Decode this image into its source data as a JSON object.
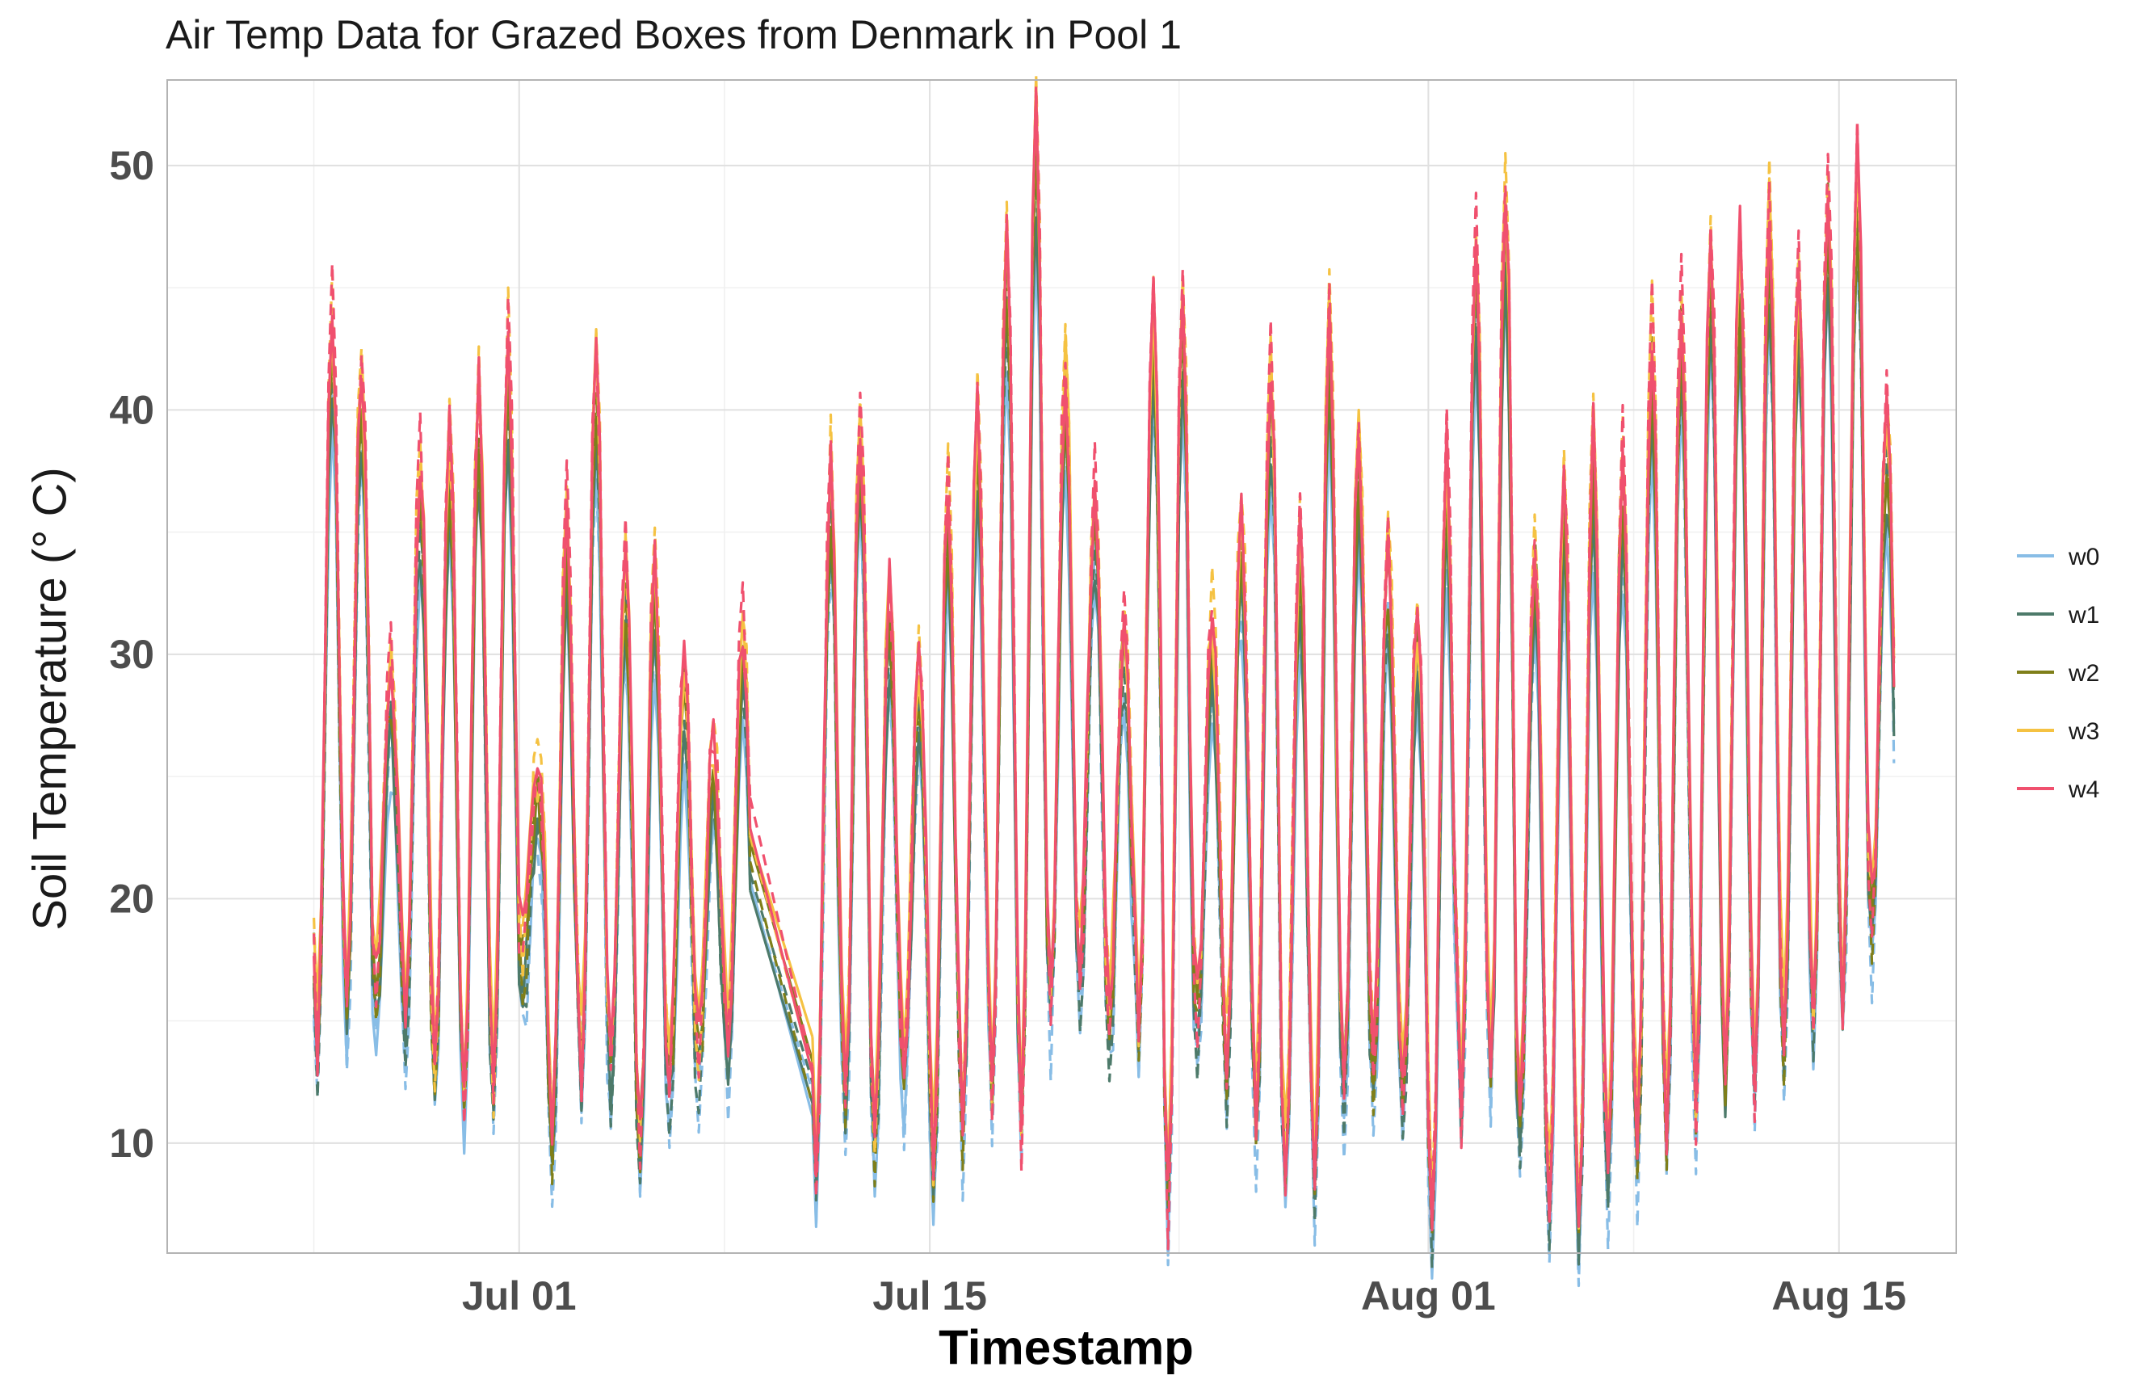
{
  "chart_data": {
    "type": "line",
    "title": "Air Temp Data for Grazed Boxes from Denmark in Pool 1",
    "xlabel": "Timestamp",
    "ylabel": "Soil Temperature (° C)",
    "x_range": [
      "2024-06-19",
      "2024-08-19"
    ],
    "ylim": [
      5.5,
      53.5
    ],
    "y_ticks": [
      10,
      20,
      30,
      40,
      50
    ],
    "x_ticks": [
      {
        "date": "2024-07-01",
        "label": "Jul 01"
      },
      {
        "date": "2024-07-15",
        "label": "Jul 15"
      },
      {
        "date": "2024-08-01",
        "label": "Aug 01"
      },
      {
        "date": "2024-08-15",
        "label": "Aug 15"
      }
    ],
    "grid": true,
    "legend_position": "right",
    "gap": {
      "start": "2024-07-08T12:00",
      "end": "2024-07-11T12:00"
    },
    "series": [
      {
        "name": "w0",
        "color": "#88bde6",
        "offset": -2.4,
        "amp": 1.0
      },
      {
        "name": "w1",
        "color": "#4d7a6a",
        "offset": -1.4,
        "amp": 1.02
      },
      {
        "name": "w2",
        "color": "#7f7f1a",
        "offset": -0.4,
        "amp": 1.05
      },
      {
        "name": "w3",
        "color": "#f5c242",
        "offset": 1.0,
        "amp": 1.08
      },
      {
        "name": "w4",
        "color": "#f0506e",
        "offset": 0.6,
        "amp": 1.12
      }
    ],
    "daily_range": {
      "dates": [
        "2024-06-24",
        "2024-06-25",
        "2024-06-26",
        "2024-06-27",
        "2024-06-28",
        "2024-06-29",
        "2024-06-30",
        "2024-07-01",
        "2024-07-02",
        "2024-07-03",
        "2024-07-04",
        "2024-07-05",
        "2024-07-06",
        "2024-07-07",
        "2024-07-08",
        "2024-07-11",
        "2024-07-12",
        "2024-07-13",
        "2024-07-14",
        "2024-07-15",
        "2024-07-16",
        "2024-07-17",
        "2024-07-18",
        "2024-07-19",
        "2024-07-20",
        "2024-07-21",
        "2024-07-22",
        "2024-07-23",
        "2024-07-24",
        "2024-07-25",
        "2024-07-26",
        "2024-07-27",
        "2024-07-28",
        "2024-07-29",
        "2024-07-30",
        "2024-07-31",
        "2024-08-01",
        "2024-08-02",
        "2024-08-03",
        "2024-08-04",
        "2024-08-05",
        "2024-08-06",
        "2024-08-07",
        "2024-08-08",
        "2024-08-09",
        "2024-08-10",
        "2024-08-11",
        "2024-08-12",
        "2024-08-13",
        "2024-08-14",
        "2024-08-15",
        "2024-08-16"
      ],
      "min": [
        15,
        17,
        17,
        16,
        14,
        13,
        13,
        18,
        11,
        14,
        14,
        11,
        13,
        14,
        15,
        10,
        13,
        11,
        14,
        10,
        12,
        13,
        12,
        17,
        18,
        16,
        16,
        9,
        16,
        14,
        12,
        10,
        10,
        13,
        14,
        13,
        8,
        13,
        14,
        12,
        9,
        8,
        10,
        11,
        12,
        13,
        14,
        14,
        15,
        16,
        17,
        20
      ],
      "max": [
        42,
        40,
        28,
        36,
        37,
        39,
        41,
        24,
        34,
        40,
        32,
        32,
        28,
        25,
        30,
        36,
        38,
        31,
        28,
        35,
        38,
        45,
        50,
        40,
        35,
        30,
        42,
        43,
        30,
        34,
        40,
        33,
        42,
        37,
        33,
        30,
        36,
        45,
        47,
        33,
        35,
        37,
        36,
        41,
        42,
        45,
        45,
        46,
        44,
        47,
        48,
        38
      ]
    }
  },
  "legend": {
    "items": [
      "w0",
      "w1",
      "w2",
      "w3",
      "w4"
    ]
  }
}
